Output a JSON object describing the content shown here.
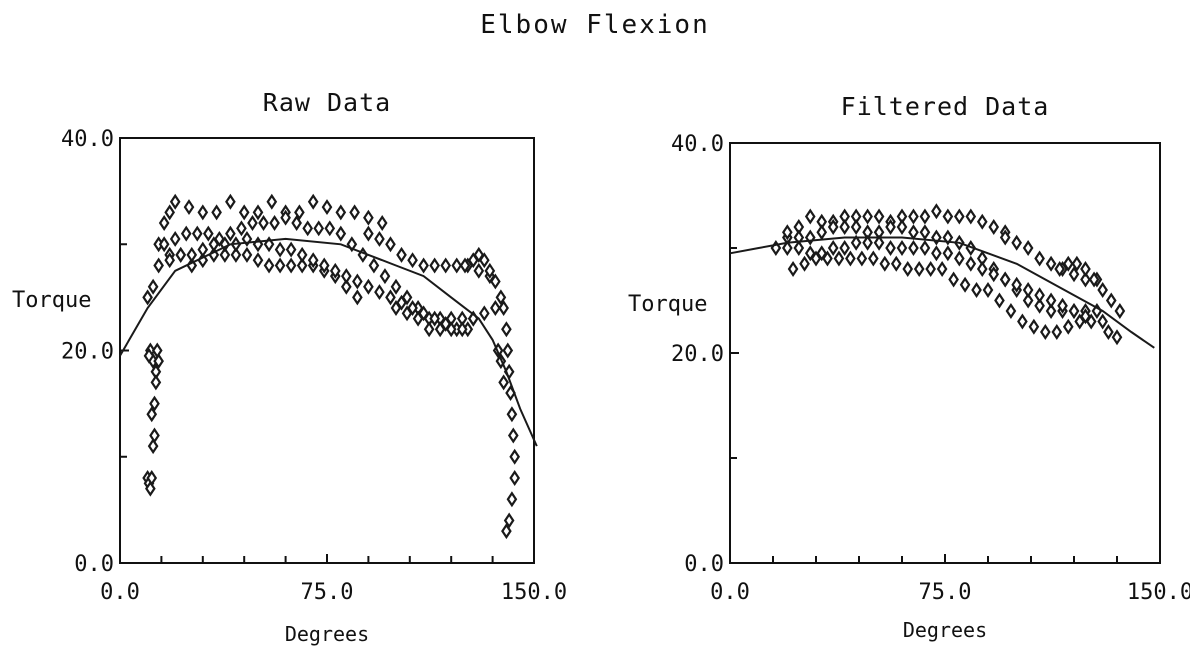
{
  "figure_title": "Elbow Flexion",
  "chart_data": [
    {
      "type": "scatter",
      "title": "Raw Data",
      "xlabel": "Degrees",
      "ylabel": "Torque",
      "xlim": [
        0,
        150
      ],
      "ylim": [
        0,
        40
      ],
      "xticks": [
        "0.0",
        "75.0",
        "150.0"
      ],
      "yticks": [
        "0.0",
        "20.0",
        "40.0"
      ],
      "minor_xticks": [
        15,
        30,
        45,
        60,
        90,
        105,
        120,
        135
      ],
      "minor_yticks": [
        10,
        30
      ],
      "grid": false,
      "marker_color": "#1a1a1a",
      "fit_color": "#1a1a1a",
      "series": [
        {
          "x": [
            10,
            10.5,
            11,
            11.5,
            12,
            12.5,
            13,
            12,
            11,
            10.5,
            11.5,
            12.5,
            13,
            13.5,
            14,
            10,
            12,
            14,
            16,
            18,
            20,
            25,
            30,
            35,
            40,
            45,
            50,
            55,
            60,
            65,
            70,
            75,
            80,
            85,
            90,
            95,
            18,
            22,
            26,
            30,
            34,
            38,
            42,
            46,
            50,
            54,
            58,
            62,
            66,
            70,
            74,
            78,
            82,
            86,
            16,
            20,
            24,
            28,
            32,
            36,
            40,
            44,
            48,
            52,
            56,
            60,
            64,
            68,
            72,
            76,
            80,
            84,
            88,
            92,
            96,
            100,
            104,
            108,
            112,
            116,
            120,
            124,
            128,
            14,
            18,
            22,
            26,
            30,
            34,
            38,
            42,
            46,
            50,
            54,
            58,
            62,
            66,
            70,
            74,
            78,
            82,
            86,
            90,
            94,
            98,
            102,
            106,
            110,
            114,
            118,
            122,
            126,
            90,
            94,
            98,
            102,
            106,
            110,
            114,
            118,
            122,
            126,
            130,
            134,
            100,
            104,
            108,
            112,
            116,
            120,
            124,
            128,
            132,
            136,
            125,
            128,
            130,
            132,
            134,
            136,
            138,
            139,
            140,
            140.5,
            141,
            141.5,
            142,
            142.5,
            143,
            143,
            142,
            141,
            140,
            139,
            138,
            137
          ],
          "y": [
            8,
            7.5,
            7,
            8,
            11,
            15,
            18,
            19,
            20,
            19.5,
            14,
            12,
            17,
            20,
            19,
            25,
            26,
            30,
            32,
            33,
            34,
            33.5,
            33,
            33,
            34,
            33,
            33,
            34,
            33,
            33,
            34,
            33.5,
            33,
            33,
            32.5,
            32,
            29,
            29,
            28,
            28.5,
            29,
            29,
            29,
            29,
            28.5,
            28,
            28,
            28,
            28,
            28,
            27.5,
            27,
            26,
            25,
            30,
            30.5,
            31,
            31,
            31,
            30.5,
            31,
            31.5,
            32,
            32,
            32,
            32.5,
            32,
            31.5,
            31.5,
            31.5,
            31,
            30,
            29,
            28,
            27,
            26,
            25,
            24,
            23,
            23,
            23,
            23,
            23,
            28,
            28.5,
            29,
            29,
            29.5,
            30,
            30,
            30,
            30.5,
            30,
            30,
            29.5,
            29.5,
            29,
            28.5,
            28,
            27.5,
            27,
            26.5,
            26,
            25.5,
            25,
            24.5,
            24,
            23.5,
            23,
            22.5,
            22,
            22,
            31,
            30.5,
            30,
            29,
            28.5,
            28,
            28,
            28,
            28,
            28,
            27.5,
            27,
            24,
            23.5,
            23,
            22,
            22,
            22,
            22,
            23,
            23.5,
            24,
            28,
            28.5,
            29,
            28.5,
            27.5,
            26.5,
            25,
            24,
            22,
            20,
            18,
            16,
            14,
            12,
            10,
            8,
            6,
            4,
            3,
            17,
            19,
            20
          ]
        }
      ],
      "fit_line": {
        "x": [
          0,
          10,
          20,
          40,
          60,
          80,
          100,
          110,
          120,
          130,
          135,
          140,
          145,
          151
        ],
        "y": [
          19.5,
          24,
          27.5,
          30,
          30.5,
          30,
          28,
          27,
          25,
          23,
          21,
          18,
          14.5,
          11
        ]
      }
    },
    {
      "type": "scatter",
      "title": "Filtered Data",
      "xlabel": "Degrees",
      "ylabel": "Torque",
      "xlim": [
        0,
        150
      ],
      "ylim": [
        0,
        40
      ],
      "xticks": [
        "0.0",
        "75.0",
        "150.0"
      ],
      "yticks": [
        "0.0",
        "20.0",
        "40.0"
      ],
      "minor_xticks": [
        15,
        30,
        45,
        60,
        90,
        105,
        120,
        135
      ],
      "minor_yticks": [
        10,
        30
      ],
      "grid": false,
      "marker_color": "#1a1a1a",
      "fit_color": "#1a1a1a",
      "series": [
        {
          "x": [
            16,
            20,
            24,
            28,
            32,
            36,
            40,
            44,
            48,
            52,
            56,
            60,
            64,
            68,
            72,
            76,
            80,
            84,
            88,
            92,
            96,
            20,
            24,
            28,
            32,
            36,
            40,
            44,
            48,
            52,
            56,
            60,
            64,
            68,
            72,
            76,
            80,
            84,
            88,
            92,
            96,
            100,
            104,
            108,
            112,
            116,
            120,
            124,
            128,
            22,
            26,
            30,
            34,
            38,
            42,
            46,
            50,
            54,
            58,
            62,
            66,
            70,
            74,
            78,
            82,
            86,
            20,
            24,
            28,
            32,
            36,
            40,
            44,
            48,
            52,
            56,
            60,
            64,
            68,
            72,
            76,
            80,
            84,
            88,
            92,
            96,
            100,
            104,
            108,
            112,
            116,
            120,
            124,
            90,
            94,
            98,
            102,
            106,
            110,
            114,
            118,
            122,
            126,
            130,
            96,
            100,
            104,
            108,
            112,
            116,
            120,
            124,
            128,
            115,
            118,
            121,
            124,
            127,
            130,
            133,
            136,
            132,
            135
          ],
          "y": [
            30,
            31,
            32,
            33,
            32.5,
            32.5,
            33,
            33,
            33,
            33,
            32.5,
            33,
            33,
            33,
            33.5,
            33,
            33,
            33,
            32.5,
            32,
            31.5,
            31.5,
            31,
            31,
            31.5,
            32,
            32,
            32,
            31.5,
            31.5,
            32,
            32,
            31.5,
            31.5,
            31,
            31,
            30.5,
            30,
            29,
            28,
            27,
            26,
            25,
            24.5,
            24,
            24,
            24,
            24,
            24,
            28,
            28.5,
            29,
            29,
            29,
            29,
            29,
            29,
            28.5,
            28.5,
            28,
            28,
            28,
            28,
            27,
            26.5,
            26,
            30,
            30,
            29.5,
            29.5,
            30,
            30,
            30.5,
            30.5,
            30.5,
            30,
            30,
            30,
            30,
            29.5,
            29.5,
            29,
            28.5,
            28,
            27.5,
            27,
            26.5,
            26,
            25.5,
            25,
            24.5,
            24,
            23.5,
            26,
            25,
            24,
            23,
            22.5,
            22,
            22,
            22.5,
            23,
            23,
            23,
            31,
            30.5,
            30,
            29,
            28.5,
            28,
            27.5,
            27,
            27,
            28,
            28.5,
            28.5,
            28,
            27,
            26,
            25,
            24,
            22,
            21.5
          ]
        }
      ],
      "fit_line": {
        "x": [
          0,
          10,
          20,
          40,
          60,
          80,
          100,
          110,
          120,
          130,
          140,
          148
        ],
        "y": [
          29.5,
          30,
          30.5,
          31,
          31,
          30.5,
          28.5,
          27,
          25.5,
          24,
          22,
          20.5
        ]
      }
    }
  ]
}
